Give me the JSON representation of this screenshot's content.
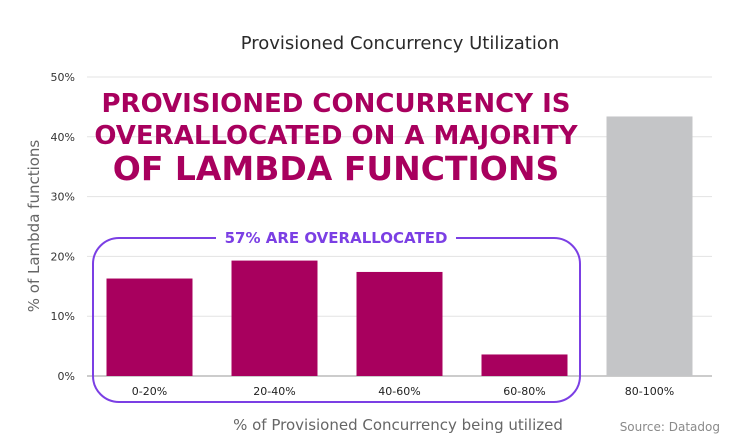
{
  "chart_data": {
    "type": "bar",
    "title": "Provisioned Concurrency Utilization",
    "xlabel": "% of Provisioned Concurrency being utilized",
    "ylabel": "% of Lambda functions",
    "ylim": [
      0,
      50
    ],
    "yticks": [
      "0%",
      "10%",
      "20%",
      "30%",
      "40%",
      "50%"
    ],
    "categories": [
      "0-20%",
      "20-40%",
      "40-60%",
      "60-80%",
      "80-100%"
    ],
    "values": [
      16.3,
      19.3,
      17.4,
      3.6,
      43.4
    ],
    "grid": true,
    "colors": {
      "highlight": "#a8005e",
      "other": "#c4c5c7",
      "callout": "#7b3fe4",
      "grid": "#e3e3e3"
    },
    "headline": [
      "PROVISIONED CONCURRENCY IS",
      "OVERALLOCATED ON A MAJORITY",
      "OF LAMBDA FUNCTIONS"
    ],
    "callout": "57% ARE OVERALLOCATED",
    "source": "Source: Datadog"
  }
}
